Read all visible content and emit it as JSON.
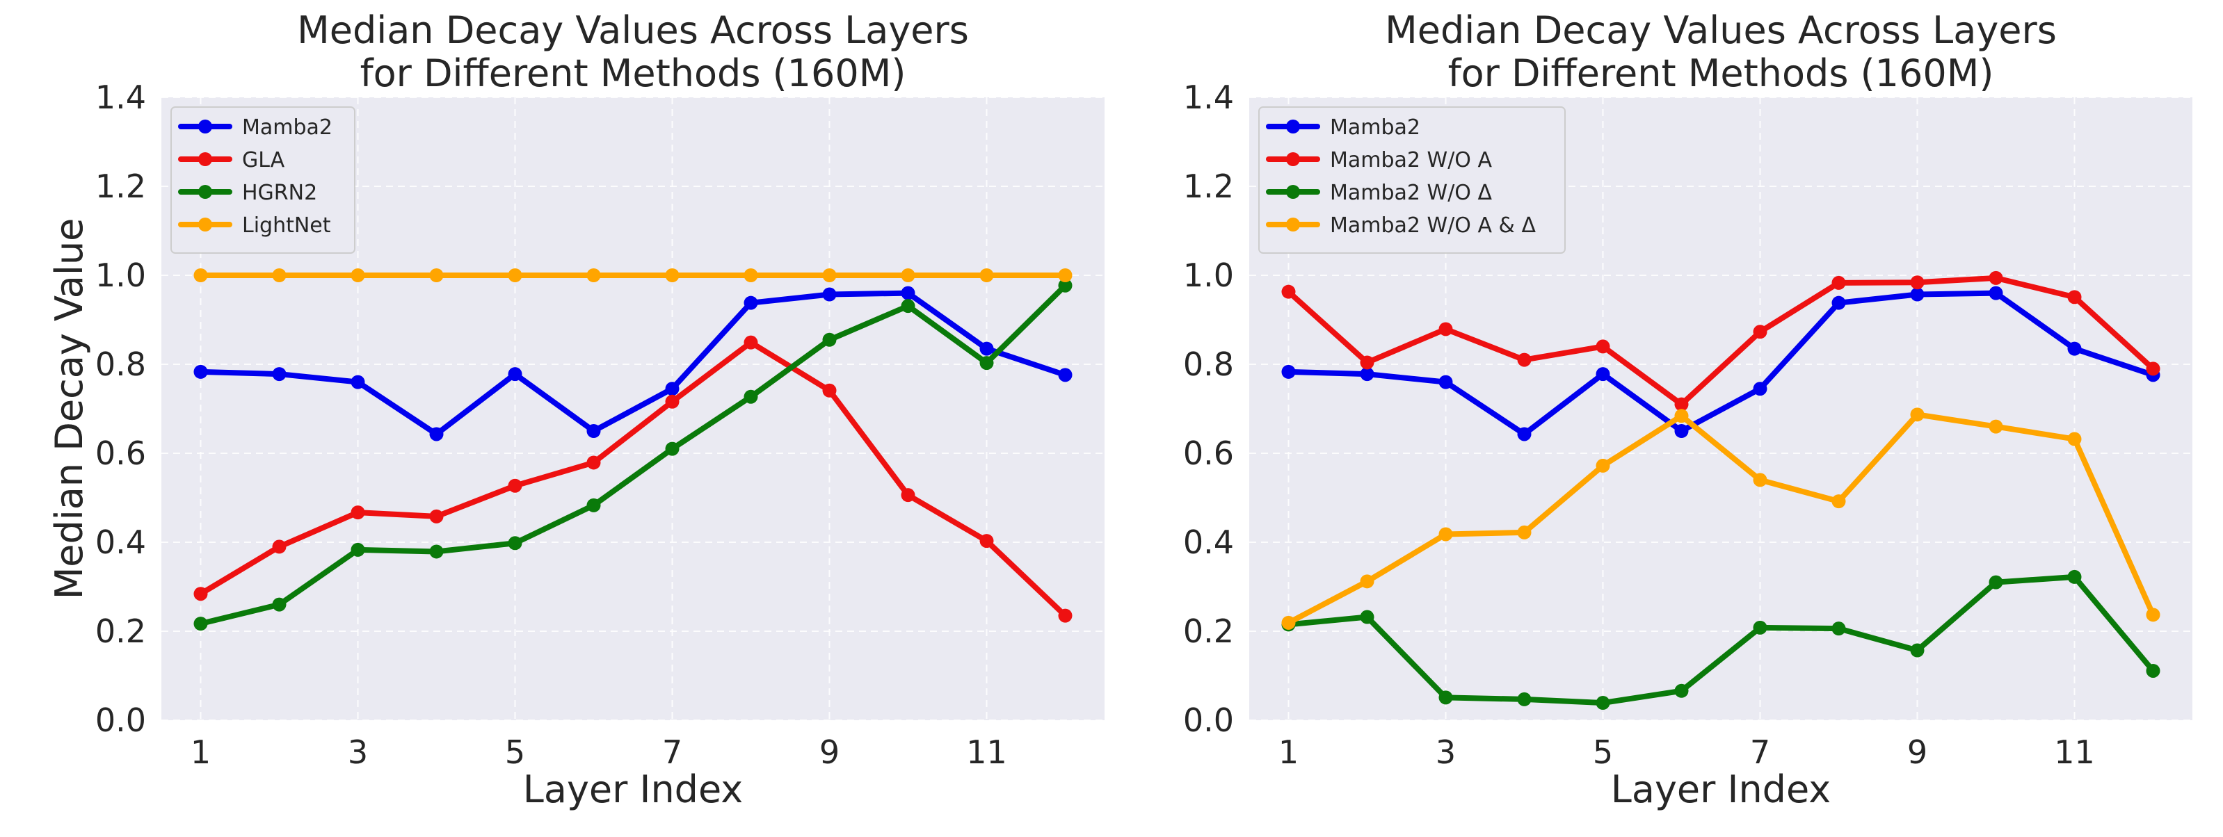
{
  "chart_data": [
    {
      "type": "line",
      "title": "Median Decay Values Across Layers",
      "subtitle": "for Different Methods (160M)",
      "xlabel": "Layer Index",
      "ylabel": "Median Decay Value",
      "x": [
        1,
        2,
        3,
        4,
        5,
        6,
        7,
        8,
        9,
        10,
        11,
        12
      ],
      "xticks": [
        "1",
        "3",
        "5",
        "7",
        "9",
        "11"
      ],
      "yticks": [
        "0.0",
        "0.2",
        "0.4",
        "0.6",
        "0.8",
        "1.0",
        "1.2",
        "1.4"
      ],
      "xlim": [
        0.5,
        12.5
      ],
      "ylim": [
        0,
        1.4
      ],
      "grid": true,
      "legend_position": "top-left",
      "series": [
        {
          "name": "Mamba2",
          "color": "#0000ee",
          "values": [
            0.783,
            0.778,
            0.76,
            0.643,
            0.778,
            0.65,
            0.745,
            0.938,
            0.957,
            0.96,
            0.835,
            0.776
          ]
        },
        {
          "name": "GLA",
          "color": "#ee1111",
          "values": [
            0.284,
            0.39,
            0.467,
            0.458,
            0.527,
            0.579,
            0.716,
            0.849,
            0.741,
            0.506,
            0.403,
            0.235
          ]
        },
        {
          "name": "HGRN2",
          "color": "#0a7a0a",
          "values": [
            0.217,
            0.26,
            0.383,
            0.379,
            0.398,
            0.483,
            0.61,
            0.727,
            0.855,
            0.931,
            0.803,
            0.977
          ]
        },
        {
          "name": "LightNet",
          "color": "#ffa500",
          "values": [
            1.0,
            1.0,
            1.0,
            1.0,
            1.0,
            1.0,
            1.0,
            1.0,
            1.0,
            1.0,
            1.0,
            1.0
          ]
        }
      ]
    },
    {
      "type": "line",
      "title": "Median Decay Values Across Layers",
      "subtitle": "for Different Methods (160M)",
      "xlabel": "Layer Index",
      "ylabel": "Median Decay Value",
      "x": [
        1,
        2,
        3,
        4,
        5,
        6,
        7,
        8,
        9,
        10,
        11,
        12
      ],
      "xticks": [
        "1",
        "3",
        "5",
        "7",
        "9",
        "11"
      ],
      "yticks": [
        "0.0",
        "0.2",
        "0.4",
        "0.6",
        "0.8",
        "1.0",
        "1.2",
        "1.4"
      ],
      "xlim": [
        0.5,
        12.5
      ],
      "ylim": [
        0,
        1.4
      ],
      "grid": true,
      "legend_position": "top-left",
      "series": [
        {
          "name": "Mamba2",
          "color": "#0000ee",
          "values": [
            0.783,
            0.778,
            0.76,
            0.643,
            0.778,
            0.65,
            0.745,
            0.938,
            0.957,
            0.96,
            0.835,
            0.776
          ]
        },
        {
          "name": "Mamba2 W/O A",
          "color": "#ee1111",
          "values": [
            0.963,
            0.804,
            0.879,
            0.81,
            0.84,
            0.71,
            0.873,
            0.983,
            0.984,
            0.994,
            0.951,
            0.79
          ]
        },
        {
          "name": "Mamba2 W/O Δ",
          "color": "#0a7a0a",
          "values": [
            0.215,
            0.232,
            0.051,
            0.047,
            0.039,
            0.066,
            0.208,
            0.206,
            0.157,
            0.31,
            0.322,
            0.111
          ]
        },
        {
          "name": "Mamba2 W/O A & Δ",
          "color": "#ffa500",
          "values": [
            0.219,
            0.312,
            0.418,
            0.422,
            0.572,
            0.684,
            0.54,
            0.492,
            0.687,
            0.66,
            0.632,
            0.237
          ]
        }
      ]
    }
  ]
}
